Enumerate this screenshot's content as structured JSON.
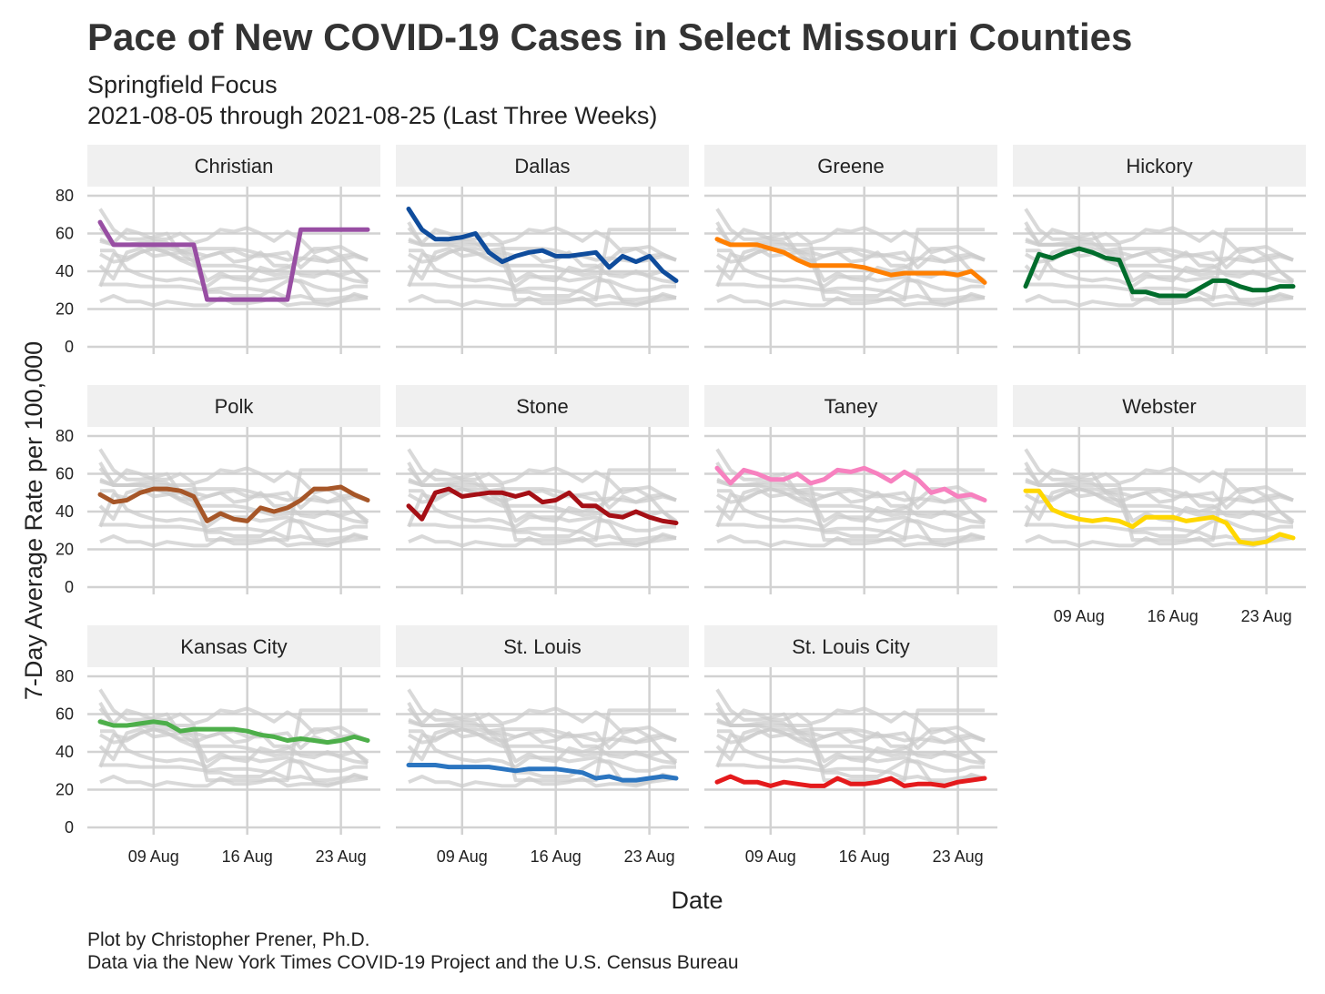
{
  "chart_data": {
    "type": "line",
    "title": "Pace of New COVID-19 Cases in Select Missouri Counties",
    "subtitle_lines": [
      "Springfield Focus",
      "2021-08-05 through 2021-08-25 (Last Three Weeks)"
    ],
    "xlabel": "Date",
    "ylabel": "7-Day Average Rate per 100,000",
    "caption_lines": [
      "Plot by Christopher Prener, Ph.D.",
      "Data via the New York Times COVID-19 Project and the U.S. Census Bureau"
    ],
    "x": [
      "2021-08-05",
      "2021-08-06",
      "2021-08-07",
      "2021-08-08",
      "2021-08-09",
      "2021-08-10",
      "2021-08-11",
      "2021-08-12",
      "2021-08-13",
      "2021-08-14",
      "2021-08-15",
      "2021-08-16",
      "2021-08-17",
      "2021-08-18",
      "2021-08-19",
      "2021-08-20",
      "2021-08-21",
      "2021-08-22",
      "2021-08-23",
      "2021-08-24",
      "2021-08-25"
    ],
    "xlim": [
      "2021-08-05",
      "2021-08-25"
    ],
    "ylim": [
      0,
      80
    ],
    "y_ticks": [
      0,
      20,
      40,
      60,
      80
    ],
    "x_ticks": [
      {
        "date": "2021-08-09",
        "label": "09 Aug"
      },
      {
        "date": "2021-08-16",
        "label": "16 Aug"
      },
      {
        "date": "2021-08-23",
        "label": "23 Aug"
      }
    ],
    "facets_layout": "wrap, 4 columns",
    "background_series_color": "#cccccc",
    "grid": true,
    "series": [
      {
        "name": "Christian",
        "color": "#984ea3",
        "values": [
          66,
          54,
          54,
          54,
          54,
          54,
          54,
          54,
          25,
          25,
          25,
          25,
          25,
          25,
          25,
          62,
          62,
          62,
          62,
          62,
          62
        ]
      },
      {
        "name": "Dallas",
        "color": "#0f4c9c",
        "values": [
          73,
          62,
          57,
          57,
          58,
          60,
          50,
          45,
          48,
          50,
          51,
          48,
          48,
          49,
          50,
          42,
          48,
          45,
          48,
          40,
          35
        ]
      },
      {
        "name": "Greene",
        "color": "#ff7f00",
        "values": [
          57,
          54,
          54,
          54,
          52,
          50,
          46,
          43,
          43,
          43,
          43,
          42,
          40,
          38,
          39,
          39,
          39,
          39,
          38,
          40,
          34
        ]
      },
      {
        "name": "Hickory",
        "color": "#006d2c",
        "values": [
          32,
          49,
          47,
          50,
          52,
          50,
          47,
          46,
          29,
          29,
          27,
          27,
          27,
          31,
          35,
          35,
          32,
          30,
          30,
          32,
          32
        ]
      },
      {
        "name": "Polk",
        "color": "#a65628",
        "values": [
          49,
          45,
          46,
          50,
          52,
          52,
          51,
          48,
          35,
          39,
          36,
          35,
          42,
          40,
          42,
          46,
          52,
          52,
          53,
          49,
          46
        ]
      },
      {
        "name": "Stone",
        "color": "#a50f15",
        "values": [
          43,
          36,
          50,
          52,
          48,
          49,
          50,
          50,
          48,
          50,
          45,
          46,
          50,
          43,
          43,
          38,
          37,
          40,
          37,
          35,
          34
        ]
      },
      {
        "name": "Taney",
        "color": "#f781bf",
        "values": [
          63,
          55,
          62,
          60,
          57,
          57,
          60,
          55,
          57,
          62,
          61,
          63,
          60,
          56,
          61,
          57,
          50,
          52,
          48,
          49,
          46
        ]
      },
      {
        "name": "Webster",
        "color": "#ffd700",
        "values": [
          51,
          51,
          41,
          38,
          36,
          35,
          36,
          35,
          32,
          37,
          37,
          37,
          35,
          36,
          37,
          34,
          24,
          23,
          24,
          28,
          26
        ]
      },
      {
        "name": "Kansas City",
        "color": "#4daf4a",
        "values": [
          56,
          54,
          54,
          55,
          56,
          55,
          51,
          52,
          52,
          52,
          52,
          51,
          49,
          48,
          46,
          47,
          46,
          45,
          46,
          48,
          46
        ]
      },
      {
        "name": "St. Louis",
        "color": "#2b75c0",
        "values": [
          33,
          33,
          33,
          32,
          32,
          32,
          32,
          31,
          30,
          31,
          31,
          31,
          30,
          29,
          26,
          27,
          25,
          25,
          26,
          27,
          26
        ]
      },
      {
        "name": "St. Louis City",
        "color": "#e41a1c",
        "values": [
          24,
          27,
          24,
          24,
          22,
          24,
          23,
          22,
          22,
          26,
          23,
          23,
          24,
          26,
          22,
          23,
          23,
          22,
          24,
          25,
          26
        ]
      }
    ]
  }
}
